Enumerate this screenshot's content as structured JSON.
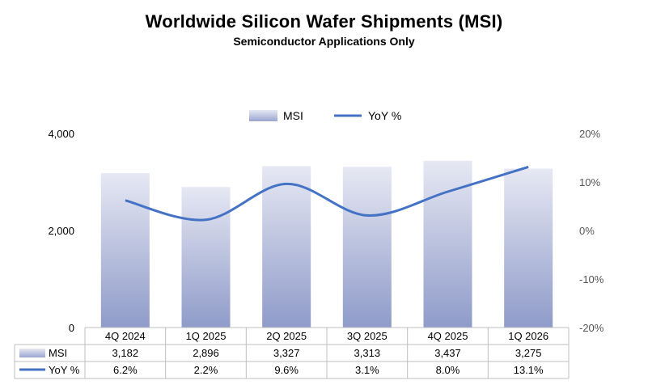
{
  "chart_data": {
    "type": "bar",
    "title": "Worldwide Silicon Wafer Shipments (MSI)",
    "subtitle": "Semiconductor Applications Only",
    "categories": [
      "4Q 2024",
      "1Q 2025",
      "2Q 2025",
      "3Q 2025",
      "4Q 2025",
      "1Q 2026"
    ],
    "series": [
      {
        "name": "MSI",
        "type": "bar",
        "axis": "left",
        "values": [
          3182,
          2896,
          3327,
          3313,
          3437,
          3275
        ],
        "labels": [
          "3,182",
          "2,896",
          "3,327",
          "3,313",
          "3,437",
          "3,275"
        ]
      },
      {
        "name": "YoY %",
        "type": "line",
        "axis": "right",
        "values": [
          6.2,
          2.2,
          9.6,
          3.1,
          8.0,
          13.1
        ],
        "labels": [
          "6.2%",
          "2.2%",
          "9.6%",
          "3.1%",
          "8.0%",
          "13.1%"
        ]
      }
    ],
    "left_axis": {
      "ylim": [
        0,
        4000
      ],
      "ticks": [
        0,
        2000,
        4000
      ],
      "tick_labels": [
        "0",
        "2,000",
        "4,000"
      ]
    },
    "right_axis": {
      "ylim": [
        -20,
        20
      ],
      "ticks": [
        -20,
        -10,
        0,
        10,
        20
      ],
      "tick_labels": [
        "-20%",
        "-10%",
        "0%",
        "10%",
        "20%"
      ]
    },
    "legend": {
      "position": "top-center",
      "items": [
        "MSI",
        "YoY %"
      ]
    },
    "data_table": true,
    "grid": false,
    "colors": {
      "bar_top": "#e6e8f3",
      "bar_bottom": "#8f9bc9",
      "line": "#4472c4"
    }
  }
}
